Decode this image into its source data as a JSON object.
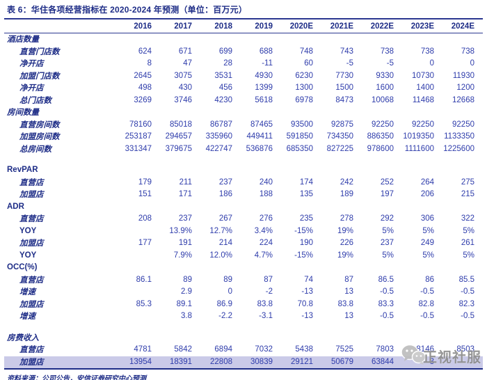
{
  "title": "表 6：华住各项经营指标在 2020-2024 年预测（单位：百万元）",
  "source": "资料来源：公司公告，安信证券研究中心预测",
  "watermark": {
    "text": "正视社服",
    "icon": "wechat-bubbles-icon",
    "color": "#8d8d8d"
  },
  "colors": {
    "navy": "#1e2d87",
    "blue": "#2e3cab",
    "highlight": "#cacae8",
    "rule": "#2a3790",
    "wm": "#8d8d8d"
  },
  "table": {
    "years": [
      "2016",
      "2017",
      "2018",
      "2019",
      "2020E",
      "2021E",
      "2022E",
      "2023E",
      "2024E"
    ],
    "rows": [
      {
        "label": "酒店数量",
        "kind": "section",
        "latin": false
      },
      {
        "label": "直营门店数",
        "kind": "data",
        "latin": false,
        "values": [
          "624",
          "671",
          "699",
          "688",
          "748",
          "743",
          "738",
          "738",
          "738"
        ]
      },
      {
        "label": "净开店",
        "kind": "data",
        "latin": false,
        "values": [
          "8",
          "47",
          "28",
          "-11",
          "60",
          "-5",
          "-5",
          "0",
          "0"
        ]
      },
      {
        "label": "加盟门店数",
        "kind": "data",
        "latin": false,
        "values": [
          "2645",
          "3075",
          "3531",
          "4930",
          "6230",
          "7730",
          "9330",
          "10730",
          "11930"
        ]
      },
      {
        "label": "净开店",
        "kind": "data",
        "latin": false,
        "values": [
          "498",
          "430",
          "456",
          "1399",
          "1300",
          "1500",
          "1600",
          "1400",
          "1200"
        ]
      },
      {
        "label": "总门店数",
        "kind": "data",
        "latin": false,
        "values": [
          "3269",
          "3746",
          "4230",
          "5618",
          "6978",
          "8473",
          "10068",
          "11468",
          "12668"
        ]
      },
      {
        "label": "房间数量",
        "kind": "section",
        "latin": false
      },
      {
        "label": "直营房间数",
        "kind": "data",
        "latin": false,
        "values": [
          "78160",
          "85018",
          "86787",
          "87465",
          "93500",
          "92875",
          "92250",
          "92250",
          "92250"
        ]
      },
      {
        "label": "加盟房间数",
        "kind": "data",
        "latin": false,
        "values": [
          "253187",
          "294657",
          "335960",
          "449411",
          "591850",
          "734350",
          "886350",
          "1019350",
          "1133350"
        ]
      },
      {
        "label": "总房间数",
        "kind": "data",
        "latin": false,
        "values": [
          "331347",
          "379675",
          "422747",
          "536876",
          "685350",
          "827225",
          "978600",
          "1111600",
          "1225600"
        ]
      },
      {
        "label": "RevPAR",
        "kind": "section",
        "latin": true,
        "gapBefore": true
      },
      {
        "label": "直营店",
        "kind": "data",
        "latin": false,
        "values": [
          "179",
          "211",
          "237",
          "240",
          "174",
          "242",
          "252",
          "264",
          "275"
        ]
      },
      {
        "label": "加盟店",
        "kind": "data",
        "latin": false,
        "values": [
          "151",
          "171",
          "186",
          "188",
          "135",
          "189",
          "197",
          "206",
          "215"
        ]
      },
      {
        "label": "ADR",
        "kind": "section",
        "latin": true
      },
      {
        "label": "直营店",
        "kind": "data",
        "latin": false,
        "values": [
          "208",
          "237",
          "267",
          "276",
          "235",
          "278",
          "292",
          "306",
          "322"
        ]
      },
      {
        "label": "YOY",
        "kind": "data",
        "latin": true,
        "values": [
          "",
          "13.9%",
          "12.7%",
          "3.4%",
          "-15%",
          "19%",
          "5%",
          "5%",
          "5%"
        ]
      },
      {
        "label": "加盟店",
        "kind": "data",
        "latin": false,
        "values": [
          "177",
          "191",
          "214",
          "224",
          "190",
          "226",
          "237",
          "249",
          "261"
        ]
      },
      {
        "label": "YOY",
        "kind": "data",
        "latin": true,
        "values": [
          "",
          "7.9%",
          "12.0%",
          "4.7%",
          "-15%",
          "19%",
          "5%",
          "5%",
          "5%"
        ]
      },
      {
        "label": "OCC(%)",
        "kind": "section",
        "latin": true
      },
      {
        "label": "直营店",
        "kind": "data",
        "latin": false,
        "values": [
          "86.1",
          "89",
          "89",
          "87",
          "74",
          "87",
          "86.5",
          "86",
          "85.5"
        ]
      },
      {
        "label": "增速",
        "kind": "data",
        "latin": false,
        "values": [
          "",
          "2.9",
          "0",
          "-2",
          "-13",
          "13",
          "-0.5",
          "-0.5",
          "-0.5"
        ]
      },
      {
        "label": "加盟店",
        "kind": "data",
        "latin": false,
        "values": [
          "85.3",
          "89.1",
          "86.9",
          "83.8",
          "70.8",
          "83.8",
          "83.3",
          "82.8",
          "82.3"
        ]
      },
      {
        "label": "增速",
        "kind": "data",
        "latin": false,
        "values": [
          "",
          "3.8",
          "-2.2",
          "-3.1",
          "-13",
          "13",
          "-0.5",
          "-0.5",
          "-0.5"
        ]
      },
      {
        "label": "房费收入",
        "kind": "section",
        "latin": false,
        "gapBefore": true
      },
      {
        "label": "直营店",
        "kind": "data",
        "latin": false,
        "values": [
          "4781",
          "5842",
          "6894",
          "7032",
          "5438",
          "7525",
          "7803",
          "8146",
          "8503"
        ]
      },
      {
        "label": "加盟店",
        "kind": "data",
        "latin": false,
        "highlight": true,
        "obscured": true,
        "values": [
          "13954",
          "18391",
          "22808",
          "30839",
          "29121",
          "50679",
          "63844",
          "3",
          ""
        ]
      }
    ]
  }
}
